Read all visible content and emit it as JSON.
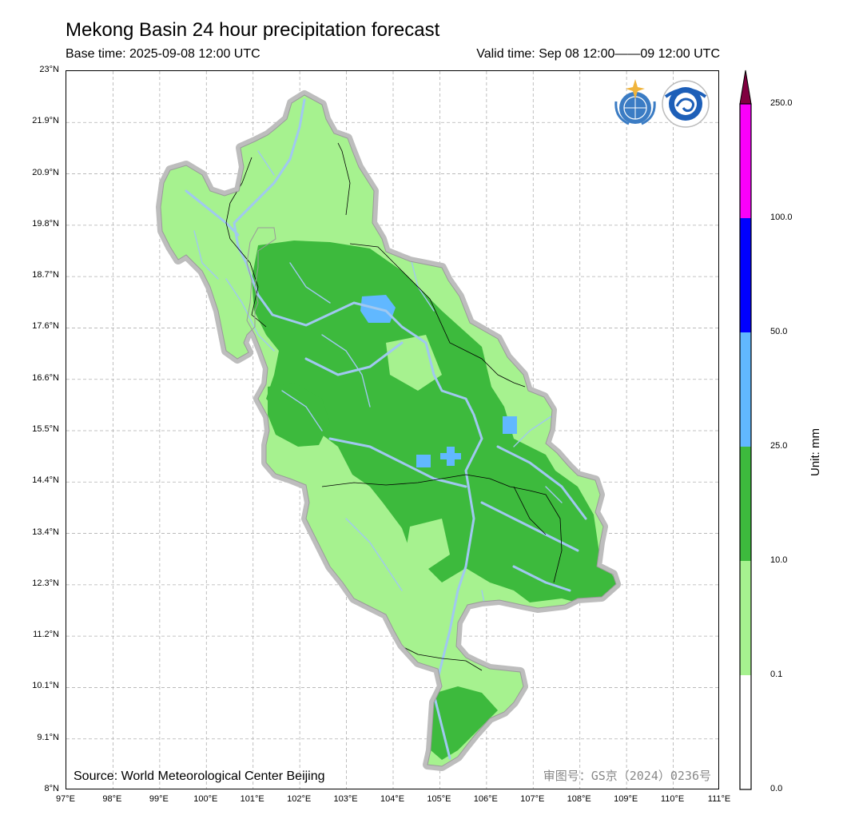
{
  "header": {
    "title": "Mekong Basin 24 hour precipitation forecast",
    "base_time": "Base time: 2025-09-08 12:00 UTC",
    "valid_time": "Valid time: Sep 08 12:00——09 12:00 UTC"
  },
  "map": {
    "source": "Source: World Meteorological Center Beijing",
    "approval_number": "审图号：GS京（2024）0236号",
    "lat_labels": [
      "23°N",
      "21.9°N",
      "20.9°N",
      "19.8°N",
      "18.7°N",
      "17.6°N",
      "16.6°N",
      "15.5°N",
      "14.4°N",
      "13.4°N",
      "12.3°N",
      "11.2°N",
      "10.1°N",
      "9.1°N",
      "8°N"
    ],
    "lon_labels": [
      "97°E",
      "98°E",
      "99°E",
      "100°E",
      "101°E",
      "102°E",
      "103°E",
      "104°E",
      "105°E",
      "106°E",
      "107°E",
      "108°E",
      "109°E",
      "110°E",
      "111°E"
    ],
    "logos": [
      "wmo-logo",
      "cma-logo"
    ]
  },
  "colorbar": {
    "unit": "Unit: mm",
    "levels": [
      "0.0",
      "0.1",
      "10.0",
      "25.0",
      "50.0",
      "100.0",
      "250.0"
    ],
    "colors": [
      "#ffffff",
      "#a6f28f",
      "#3dba3d",
      "#61b8ff",
      "#0000ff",
      "#fa00fa",
      "#800040"
    ]
  },
  "colors": {
    "light_rain": "#a6f28f",
    "moderate_rain": "#3dba3d",
    "heavy_rain": "#61b8ff",
    "river": "#a0c8f0",
    "basin_outline": "#bdbdbd"
  }
}
